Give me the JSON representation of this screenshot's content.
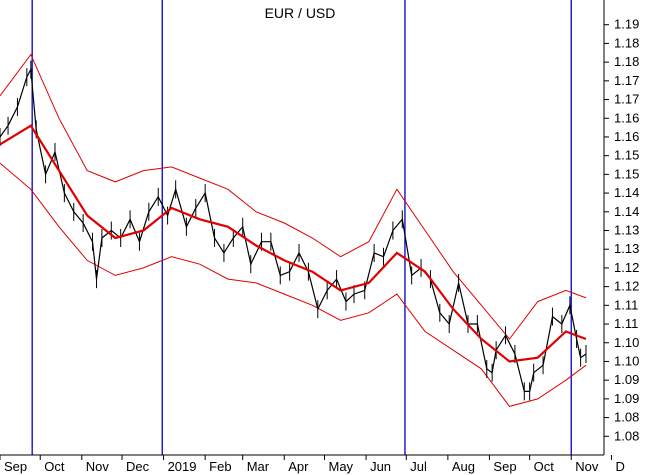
{
  "chart_data": {
    "type": "line",
    "title": "EUR / USD",
    "subtitle": "",
    "xlabel": "",
    "ylabel": "",
    "ylim": [
      1.075,
      1.195
    ],
    "y_ticks": [
      1.08,
      1.085,
      1.09,
      1.095,
      1.1,
      1.105,
      1.11,
      1.115,
      1.12,
      1.125,
      1.13,
      1.135,
      1.14,
      1.145,
      1.15,
      1.155,
      1.16,
      1.165,
      1.17,
      1.175,
      1.18,
      1.185,
      1.19
    ],
    "y_tick_labels": [
      "1.08",
      "1.08",
      "1.09",
      "1.09",
      "1.10",
      "1.10",
      "1.11",
      "1.11",
      "1.12",
      "1.12",
      "1.13",
      "1.13",
      "1.14",
      "1.14",
      "1.15",
      "1.15",
      "1.16",
      "1.16",
      "1.17",
      "1.17",
      "1.18",
      "1.18",
      "1.19"
    ],
    "x_range": [
      "2018-09-01",
      "2019-11-15"
    ],
    "x_month_labels": [
      {
        "date": "2018-09-01",
        "label": "Sep"
      },
      {
        "date": "2018-10-01",
        "label": "Oct"
      },
      {
        "date": "2018-11-01",
        "label": "Nov"
      },
      {
        "date": "2018-12-01",
        "label": "Dec"
      },
      {
        "date": "2019-01-01",
        "label": "2019"
      },
      {
        "date": "2019-02-01",
        "label": "Feb"
      },
      {
        "date": "2019-03-01",
        "label": "Mar"
      },
      {
        "date": "2019-04-01",
        "label": "Apr"
      },
      {
        "date": "2019-05-01",
        "label": "May"
      },
      {
        "date": "2019-06-01",
        "label": "Jun"
      },
      {
        "date": "2019-07-01",
        "label": "Jul"
      },
      {
        "date": "2019-08-01",
        "label": "Aug"
      },
      {
        "date": "2019-09-01",
        "label": "Sep"
      },
      {
        "date": "2019-10-01",
        "label": "Oct"
      },
      {
        "date": "2019-11-01",
        "label": "Nov"
      },
      {
        "date": "2019-12-01",
        "label": "D"
      }
    ],
    "vertical_markers": [
      "2018-09-25",
      "2018-12-31",
      "2019-06-30",
      "2019-11-01"
    ],
    "colors": {
      "price": "#000000",
      "moving_average": "#e00000",
      "bands": "#e00000",
      "markers": "#0000cc",
      "axis": "#000000"
    },
    "series": [
      {
        "type": "ohlc_close_approx",
        "x": [
          "2018-09-01",
          "2018-09-07",
          "2018-09-14",
          "2018-09-21",
          "2018-09-24",
          "2018-09-28",
          "2018-10-05",
          "2018-10-12",
          "2018-10-19",
          "2018-10-26",
          "2018-11-02",
          "2018-11-09",
          "2018-11-12",
          "2018-11-16",
          "2018-11-23",
          "2018-11-30",
          "2018-12-07",
          "2018-12-14",
          "2018-12-21",
          "2018-12-28",
          "2019-01-04",
          "2019-01-10",
          "2019-01-18",
          "2019-01-25",
          "2019-02-01",
          "2019-02-08",
          "2019-02-15",
          "2019-02-22",
          "2019-03-01",
          "2019-03-07",
          "2019-03-15",
          "2019-03-22",
          "2019-03-29",
          "2019-04-05",
          "2019-04-12",
          "2019-04-19",
          "2019-04-26",
          "2019-05-03",
          "2019-05-10",
          "2019-05-17",
          "2019-05-23",
          "2019-05-31",
          "2019-06-07",
          "2019-06-14",
          "2019-06-21",
          "2019-06-28",
          "2019-07-05",
          "2019-07-12",
          "2019-07-19",
          "2019-07-26",
          "2019-08-02",
          "2019-08-09",
          "2019-08-16",
          "2019-08-23",
          "2019-08-30",
          "2019-09-03",
          "2019-09-06",
          "2019-09-13",
          "2019-09-20",
          "2019-09-27",
          "2019-10-01",
          "2019-10-04",
          "2019-10-11",
          "2019-10-18",
          "2019-10-25",
          "2019-10-31",
          "2019-11-05",
          "2019-11-08",
          "2019-11-12"
        ],
        "values": [
          1.16,
          1.163,
          1.168,
          1.176,
          1.178,
          1.162,
          1.15,
          1.156,
          1.145,
          1.14,
          1.137,
          1.132,
          1.122,
          1.133,
          1.135,
          1.133,
          1.138,
          1.132,
          1.14,
          1.144,
          1.139,
          1.146,
          1.136,
          1.141,
          1.145,
          1.133,
          1.129,
          1.133,
          1.136,
          1.126,
          1.132,
          1.132,
          1.123,
          1.124,
          1.129,
          1.124,
          1.114,
          1.119,
          1.122,
          1.116,
          1.118,
          1.119,
          1.129,
          1.128,
          1.135,
          1.138,
          1.123,
          1.125,
          1.122,
          1.113,
          1.11,
          1.121,
          1.11,
          1.11,
          1.098,
          1.097,
          1.103,
          1.107,
          1.102,
          1.092,
          1.092,
          1.097,
          1.099,
          1.112,
          1.11,
          1.115,
          1.106,
          1.101,
          1.102
        ]
      },
      {
        "type": "moving_average",
        "x": [
          "2018-09-01",
          "2018-09-24",
          "2018-10-15",
          "2018-11-05",
          "2018-11-26",
          "2018-12-17",
          "2019-01-07",
          "2019-01-28",
          "2019-02-18",
          "2019-03-11",
          "2019-04-01",
          "2019-04-22",
          "2019-05-13",
          "2019-06-03",
          "2019-06-24",
          "2019-07-15",
          "2019-08-05",
          "2019-08-26",
          "2019-09-16",
          "2019-10-07",
          "2019-10-28",
          "2019-11-12"
        ],
        "values": [
          1.158,
          1.163,
          1.151,
          1.139,
          1.133,
          1.135,
          1.141,
          1.138,
          1.136,
          1.131,
          1.127,
          1.124,
          1.119,
          1.121,
          1.129,
          1.124,
          1.114,
          1.106,
          1.1,
          1.101,
          1.108,
          1.106
        ]
      },
      {
        "type": "upper_band",
        "x": [
          "2018-09-01",
          "2018-09-24",
          "2018-10-15",
          "2018-11-05",
          "2018-11-26",
          "2018-12-17",
          "2019-01-07",
          "2019-01-28",
          "2019-02-18",
          "2019-03-11",
          "2019-04-01",
          "2019-04-22",
          "2019-05-13",
          "2019-06-03",
          "2019-06-24",
          "2019-07-15",
          "2019-08-05",
          "2019-08-26",
          "2019-09-16",
          "2019-10-07",
          "2019-10-28",
          "2019-11-12"
        ],
        "values": [
          1.171,
          1.182,
          1.165,
          1.151,
          1.148,
          1.151,
          1.152,
          1.149,
          1.146,
          1.14,
          1.137,
          1.133,
          1.128,
          1.132,
          1.146,
          1.135,
          1.124,
          1.115,
          1.106,
          1.116,
          1.119,
          1.117
        ]
      },
      {
        "type": "lower_band",
        "x": [
          "2018-09-01",
          "2018-09-24",
          "2018-10-15",
          "2018-11-05",
          "2018-11-26",
          "2018-12-17",
          "2019-01-07",
          "2019-01-28",
          "2019-02-18",
          "2019-03-11",
          "2019-04-01",
          "2019-04-22",
          "2019-05-13",
          "2019-06-03",
          "2019-06-24",
          "2019-07-15",
          "2019-08-05",
          "2019-08-26",
          "2019-09-16",
          "2019-10-07",
          "2019-10-28",
          "2019-11-12"
        ],
        "values": [
          1.153,
          1.146,
          1.136,
          1.127,
          1.123,
          1.125,
          1.128,
          1.126,
          1.122,
          1.121,
          1.118,
          1.115,
          1.111,
          1.113,
          1.118,
          1.108,
          1.103,
          1.098,
          1.088,
          1.09,
          1.095,
          1.099
        ]
      }
    ],
    "grid": false,
    "legend": "none"
  }
}
